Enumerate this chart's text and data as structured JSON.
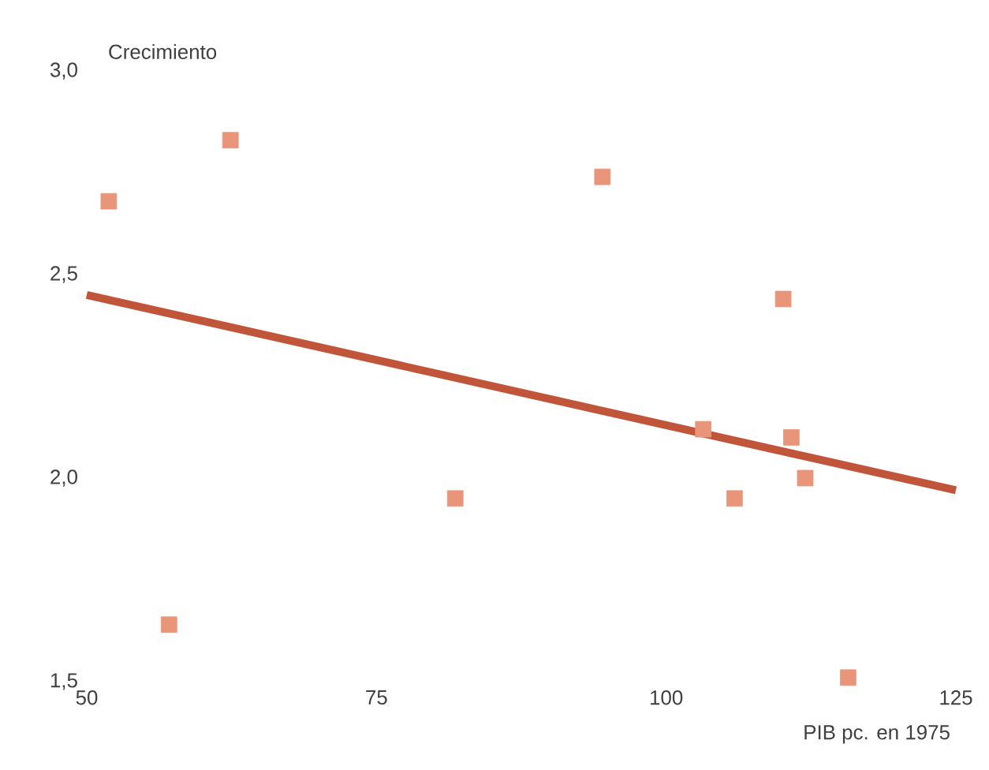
{
  "chart_data": {
    "type": "scatter",
    "xlabel": "PIB pc. en 1975",
    "ylabel": "Crecimiento",
    "xlim": [
      50,
      125
    ],
    "ylim": [
      1.5,
      3.0
    ],
    "xticks": [
      50,
      75,
      100,
      125
    ],
    "yticks": [
      {
        "value": 1.5,
        "label": "1,5"
      },
      {
        "value": 2.0,
        "label": "2,0"
      },
      {
        "value": 2.5,
        "label": "2,5"
      },
      {
        "value": 3.0,
        "label": "3,0"
      }
    ],
    "series": [
      {
        "marker": "square",
        "color": "#e8957a",
        "x": [
          51.9,
          62.4,
          94.5,
          110.1,
          103.2,
          110.8,
          112.0,
          105.9,
          81.8,
          57.1,
          115.7
        ],
        "values": [
          2.68,
          2.83,
          2.74,
          2.44,
          2.12,
          2.1,
          2.0,
          1.95,
          1.95,
          1.64,
          1.51
        ]
      },
      {
        "type": "line",
        "marker": "none",
        "color": "#c0553a",
        "x": [
          50,
          125
        ],
        "values": [
          2.45,
          1.97
        ]
      }
    ]
  }
}
